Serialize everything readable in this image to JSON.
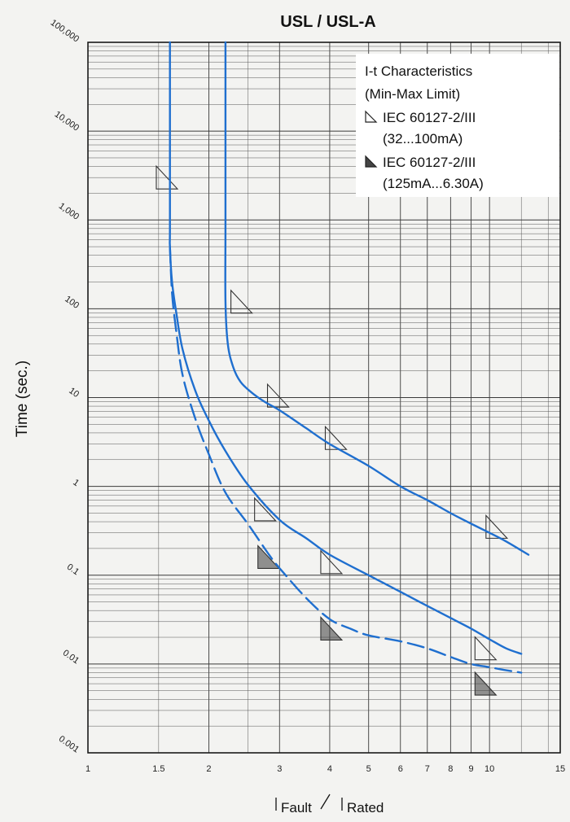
{
  "chart_data": {
    "type": "line",
    "title": "USL / USL-A",
    "ylabel": "Time (sec.)",
    "xlabel_main": [
      "Fault",
      "Rated"
    ],
    "x_scale": "log",
    "y_scale": "log",
    "xlim": [
      1,
      15
    ],
    "ylim": [
      0.001,
      100000
    ],
    "x_ticks": [
      {
        "v": 1,
        "label": "1"
      },
      {
        "v": 1.5,
        "label": "1.5"
      },
      {
        "v": 2,
        "label": "2"
      },
      {
        "v": 3,
        "label": "3"
      },
      {
        "v": 4,
        "label": "4"
      },
      {
        "v": 5,
        "label": "5"
      },
      {
        "v": 6,
        "label": "6"
      },
      {
        "v": 7,
        "label": "7"
      },
      {
        "v": 8,
        "label": "8"
      },
      {
        "v": 9,
        "label": "9"
      },
      {
        "v": 10,
        "label": "10"
      },
      {
        "v": 15,
        "label": "15"
      }
    ],
    "y_ticks": [
      {
        "v": 0.001,
        "label": "0.001"
      },
      {
        "v": 0.01,
        "label": "0.01"
      },
      {
        "v": 0.1,
        "label": "0.1"
      },
      {
        "v": 1,
        "label": "1"
      },
      {
        "v": 10,
        "label": "10"
      },
      {
        "v": 100,
        "label": "100"
      },
      {
        "v": 1000,
        "label": "1,000"
      },
      {
        "v": 10000,
        "label": "10,000"
      },
      {
        "v": 100000,
        "label": "100,000"
      }
    ],
    "grid": true,
    "legend": {
      "placement": "top-right",
      "title_lines": [
        "I-t Characteristics",
        "(Min-Max Limit)"
      ],
      "entries": [
        {
          "marker": "open-triangle",
          "lines": [
            "IEC 60127-2/III",
            "(32...100mA)"
          ]
        },
        {
          "marker": "filled-triangle",
          "lines": [
            "IEC 60127-2/III",
            "(125mA...6.30A)"
          ]
        }
      ]
    },
    "series": [
      {
        "style": "solid",
        "x": [
          2.2,
          2.2,
          2.2,
          2.23,
          2.3,
          2.4,
          2.55,
          2.75,
          3.0,
          3.5,
          4.0,
          5.0,
          6.0,
          7.0,
          8.0,
          9.0,
          10.0,
          11.0,
          12.5
        ],
        "y": [
          100000,
          1000,
          120,
          40,
          22,
          15,
          11.5,
          9,
          7.2,
          4.5,
          3,
          1.7,
          1.0,
          0.7,
          0.5,
          0.38,
          0.3,
          0.24,
          0.17
        ]
      },
      {
        "style": "solid",
        "x": [
          1.6,
          1.6,
          1.6,
          1.62,
          1.66,
          1.72,
          1.85,
          2.0,
          2.2,
          2.5,
          3.0,
          3.5,
          4.0,
          5.0,
          6.0,
          7.0,
          8.0,
          9.0,
          10.0,
          11.0,
          12.0
        ],
        "y": [
          100000,
          1000,
          500,
          200,
          90,
          35,
          12,
          5.5,
          2.5,
          1.05,
          0.42,
          0.26,
          0.17,
          0.1,
          0.065,
          0.045,
          0.033,
          0.025,
          0.019,
          0.015,
          0.013
        ]
      },
      {
        "style": "dashed",
        "x": [
          1.6,
          1.62,
          1.66,
          1.72,
          1.85,
          2.0,
          2.2,
          2.5,
          2.8,
          3.0,
          3.5,
          4.0,
          4.5,
          5.0,
          6.0,
          7.0,
          8.0,
          9.0,
          10.0,
          11.0,
          12.0
        ],
        "y": [
          500,
          150,
          55,
          18,
          5.8,
          2.3,
          0.85,
          0.38,
          0.18,
          0.12,
          0.055,
          0.032,
          0.025,
          0.021,
          0.018,
          0.015,
          0.012,
          0.01,
          0.0092,
          0.0085,
          0.008
        ]
      }
    ],
    "triangle_markers": [
      {
        "x": 1.48,
        "y": 3000,
        "type": "open"
      },
      {
        "x": 2.27,
        "y": 120,
        "type": "open"
      },
      {
        "x": 2.8,
        "y": 10.5,
        "type": "open"
      },
      {
        "x": 3.9,
        "y": 3.5,
        "type": "open"
      },
      {
        "x": 9.8,
        "y": 0.35,
        "type": "open"
      },
      {
        "x": 2.6,
        "y": 0.55,
        "type": "open"
      },
      {
        "x": 2.65,
        "y": 0.16,
        "type": "filled"
      },
      {
        "x": 3.8,
        "y": 0.14,
        "type": "open"
      },
      {
        "x": 3.8,
        "y": 0.025,
        "type": "filled"
      },
      {
        "x": 9.2,
        "y": 0.015,
        "type": "open"
      },
      {
        "x": 9.2,
        "y": 0.006,
        "type": "filled"
      }
    ]
  }
}
